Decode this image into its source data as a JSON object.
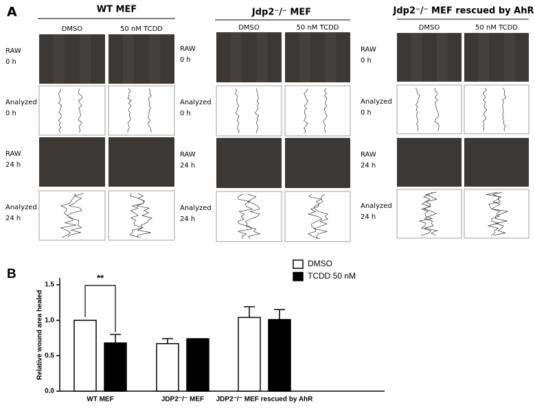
{
  "panel_a": {
    "label": "A",
    "groups": [
      {
        "title": "WT MEF",
        "columns": [
          "DMSO",
          "50 nM TCDD"
        ]
      },
      {
        "title": "Jdp2⁻/⁻ MEF",
        "columns": [
          "DMSO",
          "50 nM TCDD"
        ]
      },
      {
        "title": "Jdp2⁻/⁻ MEF rescued by AhR",
        "columns": [
          "DMSO",
          "50 nM TCDD"
        ]
      }
    ],
    "rows": [
      [
        "RAW",
        "0 h"
      ],
      [
        "Analyzed",
        "0 h"
      ],
      [
        "RAW",
        "24 h"
      ],
      [
        "Analyzed",
        "24 h"
      ]
    ]
  },
  "chart_data": {
    "type": "bar",
    "panel_label": "B",
    "y_label": "Relative wound area healed",
    "categories": [
      "WT MEF",
      "JDP2⁻/⁻ MEF",
      "JDP2⁻/⁻ MEF rescued by AhR"
    ],
    "series": [
      {
        "name": "DMSO",
        "color": "#ffffff",
        "values": [
          1.0,
          0.67,
          1.04
        ],
        "errors": [
          0,
          0.07,
          0.15
        ]
      },
      {
        "name": "TCDD 50 nM",
        "color": "#000000",
        "values": [
          0.68,
          0.74,
          1.01
        ],
        "errors": [
          0.12,
          0,
          0.14
        ]
      }
    ],
    "ylim": [
      0,
      1.5
    ],
    "yticks": [
      {
        "value": 0,
        "label": "0.0"
      },
      {
        "value": 0.5,
        "label": "0.5"
      },
      {
        "value": 1,
        "label": "1.0"
      },
      {
        "value": 1.5,
        "label": "1.5"
      }
    ],
    "annotation": "**"
  }
}
